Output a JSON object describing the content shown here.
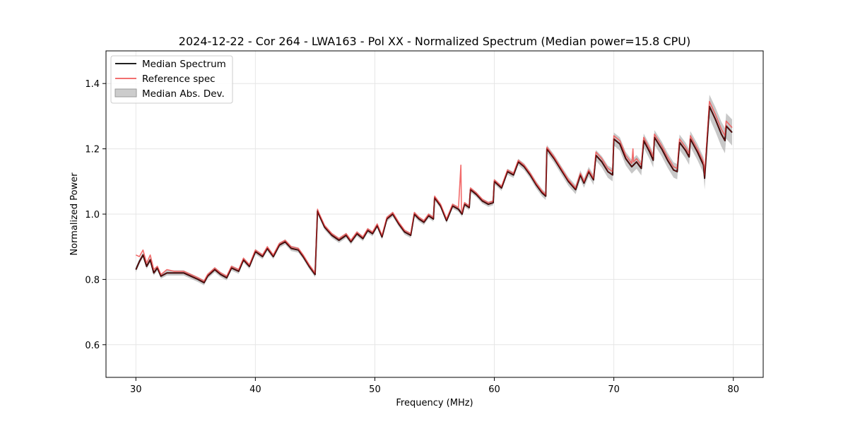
{
  "chart_data": {
    "type": "line",
    "title": "2024-12-22 - Cor 264 - LWA163 - Pol XX - Normalized Spectrum (Median power=15.8 CPU)",
    "xlabel": "Frequency (MHz)",
    "ylabel": "Normalized Power",
    "xlim": [
      27.5,
      82.5
    ],
    "ylim": [
      0.5,
      1.5
    ],
    "xticks": [
      30,
      40,
      50,
      60,
      70,
      80
    ],
    "yticks": [
      0.6,
      0.8,
      1.0,
      1.2,
      1.4
    ],
    "xtick_labels": [
      "30",
      "40",
      "50",
      "60",
      "70",
      "80"
    ],
    "ytick_labels": [
      "0.6",
      "0.8",
      "1.0",
      "1.2",
      "1.4"
    ],
    "grid": true,
    "legend_position": "top-left",
    "legend": [
      {
        "label": "Median Spectrum",
        "color": "#000000",
        "kind": "line"
      },
      {
        "label": "Reference spec",
        "color": "#f15b5b",
        "kind": "line"
      },
      {
        "label": "Median Abs. Dev.",
        "color": "#bdbdbd",
        "kind": "patch"
      }
    ],
    "series": [
      {
        "name": "Median Spectrum",
        "x": [
          30.0,
          30.3,
          30.6,
          30.9,
          31.2,
          31.5,
          31.8,
          32.1,
          32.6,
          33.2,
          34.0,
          34.6,
          35.2,
          35.7,
          36.0,
          36.6,
          37.1,
          37.6,
          38.0,
          38.6,
          39.0,
          39.5,
          40.0,
          40.6,
          41.0,
          41.5,
          42.0,
          42.5,
          43.0,
          43.6,
          44.0,
          44.5,
          45.0,
          45.2,
          45.3,
          45.8,
          46.4,
          47.0,
          47.6,
          48.0,
          48.5,
          49.0,
          49.4,
          49.8,
          50.2,
          50.6,
          51.0,
          51.5,
          52.0,
          52.5,
          53.0,
          53.3,
          53.7,
          54.1,
          54.5,
          54.9,
          55.0,
          55.5,
          56.0,
          56.5,
          57.0,
          57.3,
          57.5,
          57.9,
          58.0,
          58.5,
          59.0,
          59.5,
          59.9,
          60.0,
          60.6,
          61.1,
          61.6,
          62.0,
          62.5,
          63.0,
          63.5,
          64.0,
          64.3,
          64.4,
          65.0,
          65.6,
          66.2,
          66.8,
          67.2,
          67.5,
          67.9,
          68.3,
          68.5,
          69.0,
          69.5,
          69.9,
          70.0,
          70.5,
          71.0,
          71.5,
          71.9,
          72.3,
          72.5,
          73.0,
          73.3,
          73.4,
          74.0,
          74.5,
          75.0,
          75.3,
          75.5,
          76.0,
          76.3,
          76.4,
          77.0,
          77.5,
          77.6,
          78.0,
          78.5,
          79.0,
          79.3,
          79.4,
          79.9
        ],
        "y": [
          0.83,
          0.855,
          0.875,
          0.84,
          0.86,
          0.82,
          0.835,
          0.81,
          0.82,
          0.82,
          0.82,
          0.81,
          0.8,
          0.79,
          0.81,
          0.83,
          0.815,
          0.805,
          0.835,
          0.825,
          0.86,
          0.84,
          0.885,
          0.87,
          0.895,
          0.87,
          0.905,
          0.915,
          0.895,
          0.89,
          0.87,
          0.84,
          0.815,
          1.01,
          1.0,
          0.96,
          0.935,
          0.92,
          0.935,
          0.915,
          0.94,
          0.925,
          0.95,
          0.94,
          0.965,
          0.93,
          0.985,
          1.0,
          0.97,
          0.945,
          0.935,
          1.0,
          0.985,
          0.975,
          0.995,
          0.985,
          1.05,
          1.025,
          0.98,
          1.025,
          1.015,
          1.0,
          1.03,
          1.02,
          1.075,
          1.06,
          1.04,
          1.03,
          1.035,
          1.1,
          1.08,
          1.13,
          1.12,
          1.16,
          1.145,
          1.12,
          1.09,
          1.065,
          1.055,
          1.2,
          1.17,
          1.135,
          1.1,
          1.075,
          1.12,
          1.095,
          1.13,
          1.105,
          1.18,
          1.16,
          1.13,
          1.12,
          1.23,
          1.215,
          1.17,
          1.145,
          1.16,
          1.14,
          1.225,
          1.19,
          1.165,
          1.235,
          1.2,
          1.165,
          1.135,
          1.13,
          1.22,
          1.195,
          1.175,
          1.23,
          1.19,
          1.15,
          1.11,
          1.33,
          1.29,
          1.245,
          1.225,
          1.27,
          1.25
        ]
      },
      {
        "name": "Reference spec",
        "x": [
          30.0,
          30.3,
          30.6,
          30.9,
          31.2,
          31.5,
          31.8,
          32.1,
          32.6,
          33.2,
          34.0,
          34.6,
          35.2,
          35.7,
          36.0,
          36.6,
          37.1,
          37.6,
          38.0,
          38.6,
          39.0,
          39.5,
          40.0,
          40.6,
          41.0,
          41.5,
          42.0,
          42.5,
          43.0,
          43.6,
          44.0,
          44.5,
          45.0,
          45.2,
          45.3,
          45.8,
          46.4,
          47.0,
          47.6,
          48.0,
          48.5,
          49.0,
          49.4,
          49.8,
          50.2,
          50.6,
          51.0,
          51.5,
          52.0,
          52.5,
          53.0,
          53.3,
          53.7,
          54.1,
          54.5,
          54.9,
          55.0,
          55.5,
          56.0,
          56.5,
          57.0,
          57.2,
          57.25,
          57.3,
          57.5,
          57.9,
          58.0,
          58.5,
          59.0,
          59.5,
          59.9,
          60.0,
          60.6,
          61.1,
          61.6,
          62.0,
          62.5,
          63.0,
          63.5,
          64.0,
          64.3,
          64.4,
          65.0,
          65.6,
          66.2,
          66.8,
          67.2,
          67.5,
          67.9,
          68.3,
          68.5,
          69.0,
          69.5,
          69.9,
          70.0,
          70.5,
          71.0,
          71.5,
          71.6,
          71.65,
          71.9,
          72.3,
          72.5,
          73.0,
          73.3,
          73.4,
          74.0,
          74.5,
          75.0,
          75.3,
          75.5,
          76.0,
          76.3,
          76.4,
          77.0,
          77.5,
          77.6,
          78.0,
          78.5,
          79.0,
          79.3,
          79.4,
          79.9
        ],
        "y": [
          0.875,
          0.87,
          0.89,
          0.85,
          0.875,
          0.83,
          0.84,
          0.815,
          0.83,
          0.825,
          0.825,
          0.815,
          0.805,
          0.795,
          0.815,
          0.835,
          0.82,
          0.81,
          0.84,
          0.83,
          0.865,
          0.845,
          0.89,
          0.875,
          0.9,
          0.875,
          0.91,
          0.92,
          0.9,
          0.895,
          0.875,
          0.845,
          0.82,
          1.015,
          1.005,
          0.965,
          0.94,
          0.925,
          0.94,
          0.92,
          0.945,
          0.93,
          0.955,
          0.945,
          0.97,
          0.935,
          0.99,
          1.005,
          0.975,
          0.95,
          0.94,
          1.005,
          0.99,
          0.98,
          1.0,
          0.99,
          1.055,
          1.03,
          0.985,
          1.03,
          1.02,
          1.15,
          1.02,
          1.005,
          1.035,
          1.025,
          1.08,
          1.065,
          1.045,
          1.035,
          1.04,
          1.105,
          1.085,
          1.135,
          1.125,
          1.165,
          1.15,
          1.125,
          1.095,
          1.07,
          1.06,
          1.205,
          1.175,
          1.14,
          1.105,
          1.08,
          1.125,
          1.1,
          1.135,
          1.11,
          1.19,
          1.17,
          1.14,
          1.13,
          1.24,
          1.225,
          1.18,
          1.155,
          1.2,
          1.16,
          1.17,
          1.15,
          1.235,
          1.2,
          1.175,
          1.245,
          1.21,
          1.175,
          1.145,
          1.14,
          1.23,
          1.205,
          1.185,
          1.24,
          1.2,
          1.16,
          1.12,
          1.345,
          1.305,
          1.26,
          1.24,
          1.285,
          1.265
        ]
      },
      {
        "name": "Median Abs. Dev.",
        "note": "band half-width around Median Spectrum",
        "x": [
          30.0,
          45.0,
          60.0,
          68.0,
          70.0,
          77.5,
          77.6,
          79.9
        ],
        "halfwidth": [
          0.008,
          0.008,
          0.008,
          0.015,
          0.02,
          0.025,
          0.035,
          0.04
        ]
      }
    ]
  }
}
